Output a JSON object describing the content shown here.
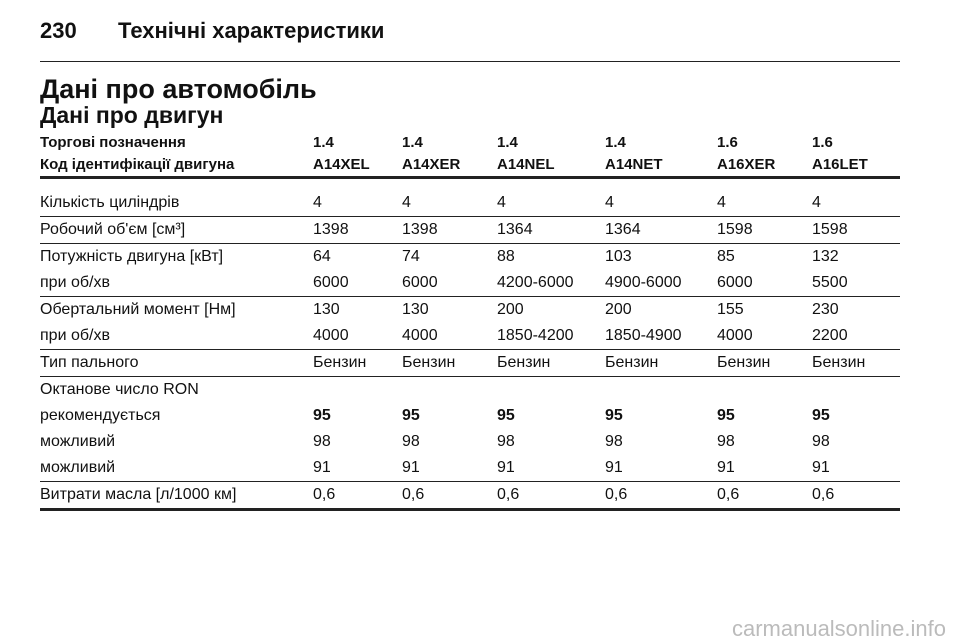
{
  "header": {
    "page_number": "230",
    "section": "Технічні характеристики"
  },
  "title": "Дані про автомобіль",
  "subtitle": "Дані про двигун",
  "table": {
    "header_rows": [
      [
        "Торгові позначення",
        "1.4",
        "1.4",
        "1.4",
        "1.4",
        "1.6",
        "1.6"
      ],
      [
        "Код ідентифікації двигуна",
        "A14XEL",
        "A14XER",
        "A14NEL",
        "A14NET",
        "A16XER",
        "A16LET"
      ]
    ],
    "groups": [
      {
        "rows": [
          {
            "label": "Кількість циліндрів",
            "values": [
              "4",
              "4",
              "4",
              "4",
              "4",
              "4"
            ]
          }
        ]
      },
      {
        "rows": [
          {
            "label": "Робочий об'єм [см³]",
            "values": [
              "1398",
              "1398",
              "1364",
              "1364",
              "1598",
              "1598"
            ]
          }
        ]
      },
      {
        "rows": [
          {
            "label": "Потужність двигуна [кВт]",
            "values": [
              "64",
              "74",
              "88",
              "103",
              "85",
              "132"
            ]
          },
          {
            "label": "при об/хв",
            "values": [
              "6000",
              "6000",
              "4200-6000",
              "4900-6000",
              "6000",
              "5500"
            ]
          }
        ]
      },
      {
        "rows": [
          {
            "label": "Обертальний момент [Нм]",
            "values": [
              "130",
              "130",
              "200",
              "200",
              "155",
              "230"
            ]
          },
          {
            "label": "при об/хв",
            "values": [
              "4000",
              "4000",
              "1850-4200",
              "1850-4900",
              "4000",
              "2200"
            ]
          }
        ]
      },
      {
        "rows": [
          {
            "label": "Тип пального",
            "values": [
              "Бензин",
              "Бензин",
              "Бензин",
              "Бензин",
              "Бензин",
              "Бензин"
            ]
          }
        ]
      },
      {
        "rows": [
          {
            "label": "Октанове число RON"
          },
          {
            "label": "рекомендується",
            "values": [
              "95",
              "95",
              "95",
              "95",
              "95",
              "95"
            ],
            "emphasis": true
          },
          {
            "label": "можливий",
            "values": [
              "98",
              "98",
              "98",
              "98",
              "98",
              "98"
            ]
          },
          {
            "label": "можливий",
            "values": [
              "91",
              "91",
              "91",
              "91",
              "91",
              "91"
            ]
          }
        ]
      },
      {
        "rows": [
          {
            "label": "Витрати масла [л/1000 км]",
            "values": [
              "0,6",
              "0,6",
              "0,6",
              "0,6",
              "0,6",
              "0,6"
            ]
          }
        ]
      }
    ]
  },
  "watermark": "carmanualsonline.info"
}
